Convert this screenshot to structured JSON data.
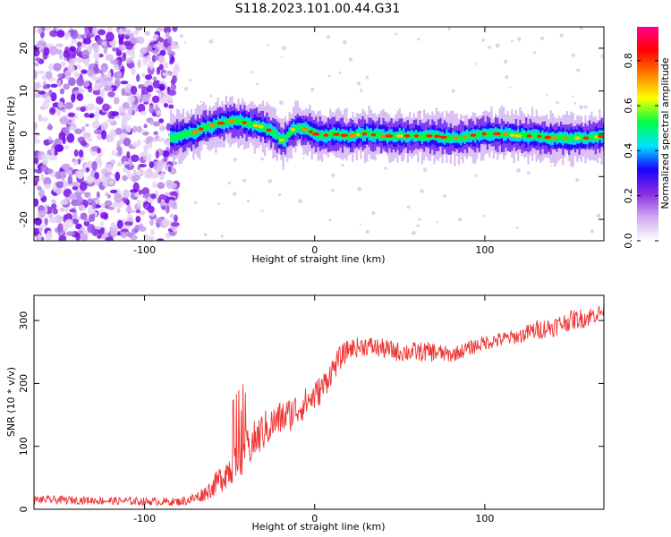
{
  "title": "S118.2023.101.00.44.G31",
  "chart_data": [
    {
      "type": "heatmap",
      "title": "S118.2023.101.00.44.G31",
      "xlabel": "Height of straight line (km)",
      "ylabel": "Frequency (Hz)",
      "xlim": [
        -165,
        170
      ],
      "ylim": [
        -25,
        25
      ],
      "xticks": [
        "-100",
        "0",
        "100"
      ],
      "xtick_values": [
        -100,
        0,
        100
      ],
      "yticks": [
        "-20",
        "-10",
        "0",
        "10",
        "20"
      ],
      "ytick_values": [
        -20,
        -10,
        0,
        10,
        20
      ],
      "colorbar": {
        "label": "Normalized spectral amplitude",
        "range": [
          0,
          0.95
        ],
        "ticks": [
          "0.0",
          "0.2",
          "0.4",
          "0.6",
          "0.8"
        ],
        "tick_values": [
          0.0,
          0.2,
          0.4,
          0.6,
          0.8
        ],
        "colors": [
          "#ffffff",
          "#cfa8f0",
          "#8a2be2",
          "#1a00ff",
          "#00e5ff",
          "#00ff40",
          "#ffff00",
          "#ff8000",
          "#ff0000",
          "#ff0090"
        ]
      },
      "noise_region_x": [
        -165,
        -83
      ],
      "ridge": {
        "description_values": "peak frequency trace (Hz) vs height (km)",
        "x": [
          -85,
          -80,
          -75,
          -70,
          -65,
          -60,
          -55,
          -50,
          -45,
          -40,
          -35,
          -30,
          -25,
          -20,
          -18,
          -15,
          -10,
          -5,
          0,
          5,
          10,
          20,
          30,
          40,
          50,
          60,
          70,
          80,
          85,
          90,
          100,
          110,
          120,
          130,
          140,
          150,
          160,
          170
        ],
        "freq": [
          -1,
          -0.5,
          0,
          0.5,
          1.5,
          2,
          2.5,
          3,
          3,
          2.5,
          2,
          1.5,
          0.5,
          -1.5,
          -1.5,
          0.5,
          1.5,
          1,
          0,
          -0.5,
          0,
          -0.5,
          0,
          -0.5,
          -0.5,
          -0.5,
          -0.5,
          -1,
          -1,
          -0.5,
          0,
          0,
          -0.5,
          -0.5,
          -1,
          -1,
          -1,
          -0.5
        ]
      },
      "grid": false
    },
    {
      "type": "line",
      "xlabel": "Height of straight line (km)",
      "ylabel": "SNR (10 * v/v)",
      "xlim": [
        -165,
        170
      ],
      "ylim": [
        0,
        340
      ],
      "xticks": [
        "-100",
        "0",
        "100"
      ],
      "xtick_values": [
        -100,
        0,
        100
      ],
      "yticks": [
        "0",
        "100",
        "200",
        "300"
      ],
      "ytick_values": [
        0,
        100,
        200,
        300
      ],
      "grid": false,
      "series": [
        {
          "color": "#ee3333",
          "x": [
            -165,
            -150,
            -130,
            -110,
            -90,
            -80,
            -75,
            -70,
            -65,
            -60,
            -55,
            -50,
            -45,
            -40,
            -35,
            -30,
            -25,
            -20,
            -15,
            -10,
            -5,
            0,
            5,
            10,
            15,
            20,
            30,
            40,
            50,
            60,
            70,
            80,
            90,
            100,
            110,
            120,
            130,
            140,
            150,
            160,
            170
          ],
          "y": [
            15,
            15,
            14,
            13,
            12,
            12,
            14,
            18,
            25,
            35,
            50,
            65,
            80,
            95,
            110,
            125,
            135,
            145,
            150,
            160,
            170,
            180,
            195,
            220,
            240,
            255,
            260,
            255,
            250,
            250,
            250,
            245,
            255,
            265,
            270,
            275,
            285,
            290,
            300,
            305,
            315
          ],
          "noise_amplitude": [
            8,
            8,
            8,
            8,
            8,
            8,
            10,
            12,
            15,
            20,
            30,
            35,
            40,
            40,
            40,
            40,
            35,
            35,
            35,
            35,
            30,
            30,
            30,
            25,
            25,
            20,
            20,
            20,
            20,
            20,
            20,
            15,
            15,
            15,
            15,
            15,
            20,
            20,
            20,
            20,
            15
          ]
        }
      ]
    }
  ]
}
